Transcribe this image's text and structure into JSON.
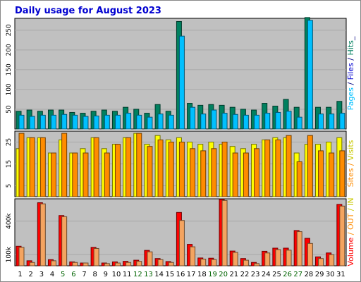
{
  "chart_data": {
    "type": "bar",
    "title": "Daily usage for August 2023",
    "x": [
      "1",
      "2",
      "3",
      "4",
      "5",
      "6",
      "7",
      "8",
      "9",
      "10",
      "11",
      "12",
      "13",
      "14",
      "15",
      "16",
      "17",
      "18",
      "19",
      "20",
      "21",
      "22",
      "23",
      "24",
      "25",
      "26",
      "27",
      "28",
      "29",
      "30",
      "31"
    ],
    "weekend_days": [
      "5",
      "6",
      "12",
      "13",
      "19",
      "20",
      "26",
      "27"
    ],
    "colors": {
      "title": "#0000d0",
      "background": "#c0c0c0",
      "weekday_label": "#000000",
      "weekend_label": "#006400",
      "hits": "#00805f",
      "files": "#00c0ff",
      "pages": "#00c0ff",
      "visits": "#ffff00",
      "sites": "#ff8c00",
      "kbin": "#ff0000",
      "kbout": "#f4a460"
    },
    "panels": [
      {
        "id": "hits-files-pages",
        "legend_parts": [
          {
            "text": "Pages",
            "color": "#00c0ff"
          },
          {
            "text": " / ",
            "color": "#000080"
          },
          {
            "text": "Files",
            "color": "#0000d0"
          },
          {
            "text": " / ",
            "color": "#000080"
          },
          {
            "text": "Hits",
            "color": "#00805f"
          },
          {
            "text": "_",
            "color": "#000080"
          }
        ],
        "ylim": [
          0,
          280
        ],
        "yticks": [
          "50",
          "100",
          "150",
          "200",
          "250"
        ],
        "ytick_values": [
          50,
          100,
          150,
          200,
          250
        ],
        "series": [
          {
            "name": "Hits",
            "color": "#00805f",
            "values": [
              45,
              48,
              45,
              48,
              48,
              42,
              40,
              45,
              48,
              45,
              55,
              50,
              40,
              62,
              45,
              272,
              65,
              60,
              62,
              60,
              55,
              50,
              48,
              65,
              58,
              75,
              55,
              282,
              55,
              55,
              70
            ]
          },
          {
            "name": "Files",
            "color": "#00c0ff",
            "values": [
              35,
              32,
              35,
              35,
              37,
              35,
              32,
              33,
              35,
              35,
              40,
              35,
              30,
              38,
              35,
              235,
              55,
              38,
              48,
              40,
              37,
              35,
              35,
              40,
              42,
              45,
              30,
              275,
              38,
              38,
              40
            ]
          }
        ]
      },
      {
        "id": "visits-sites",
        "legend_parts": [
          {
            "text": "Sites",
            "color": "#ff8c00"
          },
          {
            "text": " / ",
            "color": "#ff8c00"
          },
          {
            "text": "Visits",
            "color": "#c8c800"
          }
        ],
        "ylim": [
          0,
          30
        ],
        "yticks": [
          "5",
          "15",
          "25"
        ],
        "ytick_values": [
          5,
          15,
          25
        ],
        "series": [
          {
            "name": "Visits",
            "color": "#ffff00",
            "values": [
              22,
              27,
              27,
              20,
              26,
              20,
              22,
              27,
              22,
              24,
              27,
              29,
              24,
              28,
              26,
              27,
              25,
              24,
              25,
              24,
              23,
              22,
              24,
              26,
              27,
              27,
              20,
              24,
              24,
              25,
              27
            ]
          },
          {
            "name": "Sites",
            "color": "#ff8c00",
            "values": [
              29,
              27,
              27,
              20,
              29,
              20,
              20,
              27,
              20,
              24,
              27,
              29,
              23,
              26,
              25,
              25,
              22,
              21,
              22,
              25,
              20,
              20,
              22,
              26,
              26,
              28,
              16,
              28,
              21,
              20,
              21
            ]
          }
        ]
      },
      {
        "id": "kbin-kbout",
        "legend_parts": [
          {
            "text": "Volume",
            "color": "#ff0000"
          },
          {
            "text": " / ",
            "color": "#ff8c00"
          },
          {
            "text": "OUT",
            "color": "#ff8c00"
          },
          {
            "text": " / ",
            "color": "#c8c800"
          },
          {
            "text": "IN",
            "color": "#c8c800"
          }
        ],
        "ylim": [
          0,
          600
        ],
        "yticks": [
          "100k",
          "400k"
        ],
        "ytick_values": [
          100,
          400
        ],
        "series": [
          {
            "name": "KBytes In",
            "color": "#ff0000",
            "values": [
              175,
              45,
              565,
              55,
              450,
              35,
              25,
              165,
              25,
              35,
              40,
              50,
              138,
              65,
              38,
              478,
              192,
              70,
              68,
              595,
              132,
              65,
              30,
              130,
              158,
              158,
              316,
              246,
              80,
              115,
              550
            ]
          },
          {
            "name": "KBytes Out",
            "color": "#f4a460",
            "values": [
              165,
              30,
              555,
              45,
              440,
              30,
              25,
              155,
              20,
              25,
              30,
              40,
              125,
              55,
              30,
              406,
              170,
              60,
              56,
              585,
              120,
              50,
              20,
              115,
              145,
              140,
              306,
              200,
              65,
              100,
              535
            ]
          }
        ]
      }
    ]
  }
}
